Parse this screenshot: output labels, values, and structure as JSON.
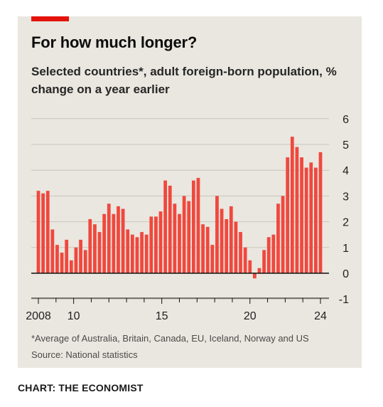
{
  "header": {
    "title": "For how much longer?",
    "subtitle": "Selected countries*, adult foreign-born population, % change on a year earlier"
  },
  "footer": {
    "footnote": "*Average of Australia, Britain, Canada, EU, Iceland, Norway and US",
    "source": "Source: National statistics",
    "credit": "CHART: THE ECONOMIST"
  },
  "colors": {
    "bar": "#f0483e",
    "accent": "#e3120b",
    "panel": "#e9e7df"
  },
  "chart_data": {
    "type": "bar",
    "ylim": [
      -1,
      6
    ],
    "yticks": [
      -1,
      0,
      1,
      2,
      3,
      4,
      5,
      6
    ],
    "ytick_labels": [
      "-1",
      "0",
      "1",
      "2",
      "3",
      "4",
      "5",
      "6"
    ],
    "x_tick_labels": [
      {
        "label": "2008",
        "value": 2008.0
      },
      {
        "label": "10",
        "value": 2010.0
      },
      {
        "label": "15",
        "value": 2015.0
      },
      {
        "label": "20",
        "value": 2020.0
      },
      {
        "label": "24",
        "value": 2024.0
      }
    ],
    "x_minor_ticks": [
      2009,
      2011,
      2012,
      2013,
      2014,
      2016,
      2017,
      2018,
      2019,
      2021,
      2022,
      2023
    ],
    "x_start": 2008.0,
    "x_end": 2024.0,
    "grid": true,
    "values": [
      3.2,
      3.1,
      3.2,
      1.7,
      1.1,
      0.8,
      1.3,
      0.5,
      1.0,
      1.3,
      0.9,
      2.1,
      1.9,
      1.6,
      2.3,
      2.7,
      2.3,
      2.6,
      2.5,
      1.7,
      1.5,
      1.4,
      1.6,
      1.5,
      2.2,
      2.2,
      2.4,
      3.6,
      3.4,
      2.7,
      2.3,
      3.0,
      2.8,
      3.6,
      3.7,
      1.9,
      1.8,
      1.1,
      3.0,
      2.5,
      2.1,
      2.6,
      2.0,
      1.6,
      1.0,
      0.5,
      -0.2,
      0.2,
      0.9,
      1.4,
      1.5,
      2.7,
      3.0,
      4.5,
      5.3,
      4.9,
      4.5,
      4.1,
      4.3,
      4.1,
      4.7
    ]
  }
}
